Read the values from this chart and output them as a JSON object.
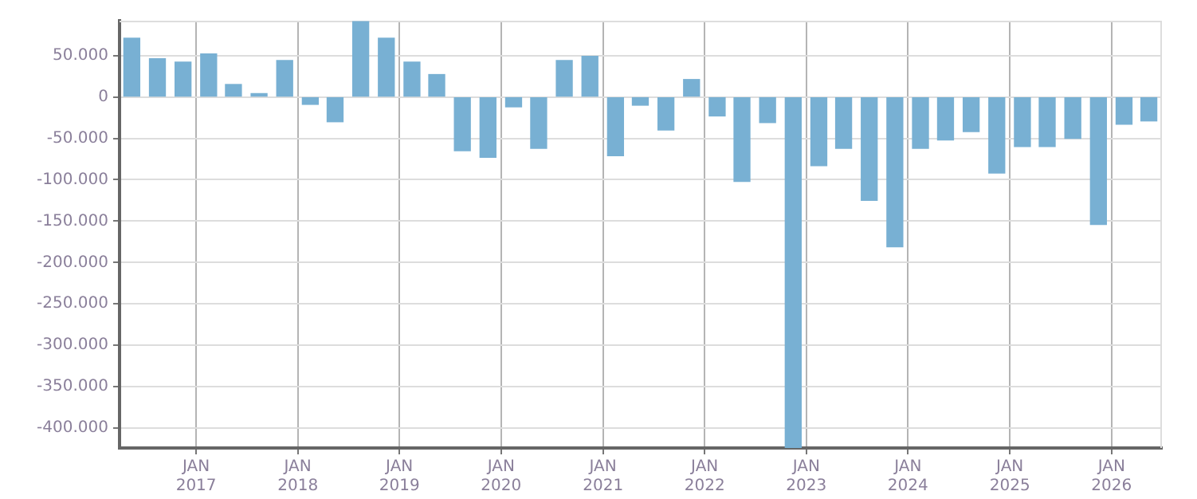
{
  "chart_data": {
    "type": "bar",
    "color": "#78b0d3",
    "x": [
      "2016-05-15",
      "2016-08-15",
      "2016-11-15",
      "2017-02-15",
      "2017-05-15",
      "2017-08-15",
      "2017-11-15",
      "2018-02-15",
      "2018-05-15",
      "2018-08-15",
      "2018-11-15",
      "2019-02-15",
      "2019-05-15",
      "2019-08-15",
      "2019-11-15",
      "2020-02-15",
      "2020-05-15",
      "2020-08-15",
      "2020-11-15",
      "2021-02-15",
      "2021-05-15",
      "2021-08-15",
      "2021-11-15",
      "2022-02-15",
      "2022-05-15",
      "2022-08-15",
      "2022-11-15",
      "2023-02-15",
      "2023-05-15",
      "2023-08-15",
      "2023-11-15",
      "2024-02-15",
      "2024-05-15",
      "2024-08-15",
      "2024-11-15",
      "2025-02-15",
      "2025-05-15",
      "2025-08-15",
      "2025-11-15",
      "2026-02-15",
      "2026-05-15"
    ],
    "values": [
      71000,
      46000,
      42000,
      52000,
      15000,
      4000,
      44000,
      -9000,
      -30000,
      91000,
      71000,
      42000,
      27000,
      -65000,
      -73000,
      -12000,
      -62000,
      44000,
      49000,
      -71000,
      -10000,
      -40000,
      21000,
      -23000,
      -102000,
      -31000,
      -424000,
      -83000,
      -62000,
      -125000,
      -181000,
      -62000,
      -52000,
      -42000,
      -92000,
      -60000,
      -60000,
      -50000,
      -154000,
      -33000,
      -29000
    ],
    "xlim": [
      "2016-04",
      "2026-07"
    ],
    "xticks": [
      {
        "value": "2017-01",
        "label": "JAN 2017"
      },
      {
        "value": "2018-01",
        "label": "JAN 2018"
      },
      {
        "value": "2019-01",
        "label": "JAN 2019"
      },
      {
        "value": "2020-01",
        "label": "JAN 2020"
      },
      {
        "value": "2021-01",
        "label": "JAN 2021"
      },
      {
        "value": "2022-01",
        "label": "JAN 2022"
      },
      {
        "value": "2023-01",
        "label": "JAN 2023"
      },
      {
        "value": "2024-01",
        "label": "JAN 2024"
      },
      {
        "value": "2025-01",
        "label": "JAN 2025"
      },
      {
        "value": "2026-01",
        "label": "JAN 2026"
      }
    ],
    "ylim": [
      -424000,
      92000
    ],
    "yticks": [
      {
        "value": -400000,
        "label": "-400.000"
      },
      {
        "value": -350000,
        "label": "-350.000"
      },
      {
        "value": -300000,
        "label": "-300.000"
      },
      {
        "value": -250000,
        "label": "-250.000"
      },
      {
        "value": -200000,
        "label": "-200.000"
      },
      {
        "value": -150000,
        "label": "-150.000"
      },
      {
        "value": -100000,
        "label": "-100.000"
      },
      {
        "value": -50000,
        "label": "-50.000"
      },
      {
        "value": 0,
        "label": "0"
      },
      {
        "value": 50000,
        "label": "50.000"
      }
    ],
    "grid": true,
    "legend": false
  }
}
